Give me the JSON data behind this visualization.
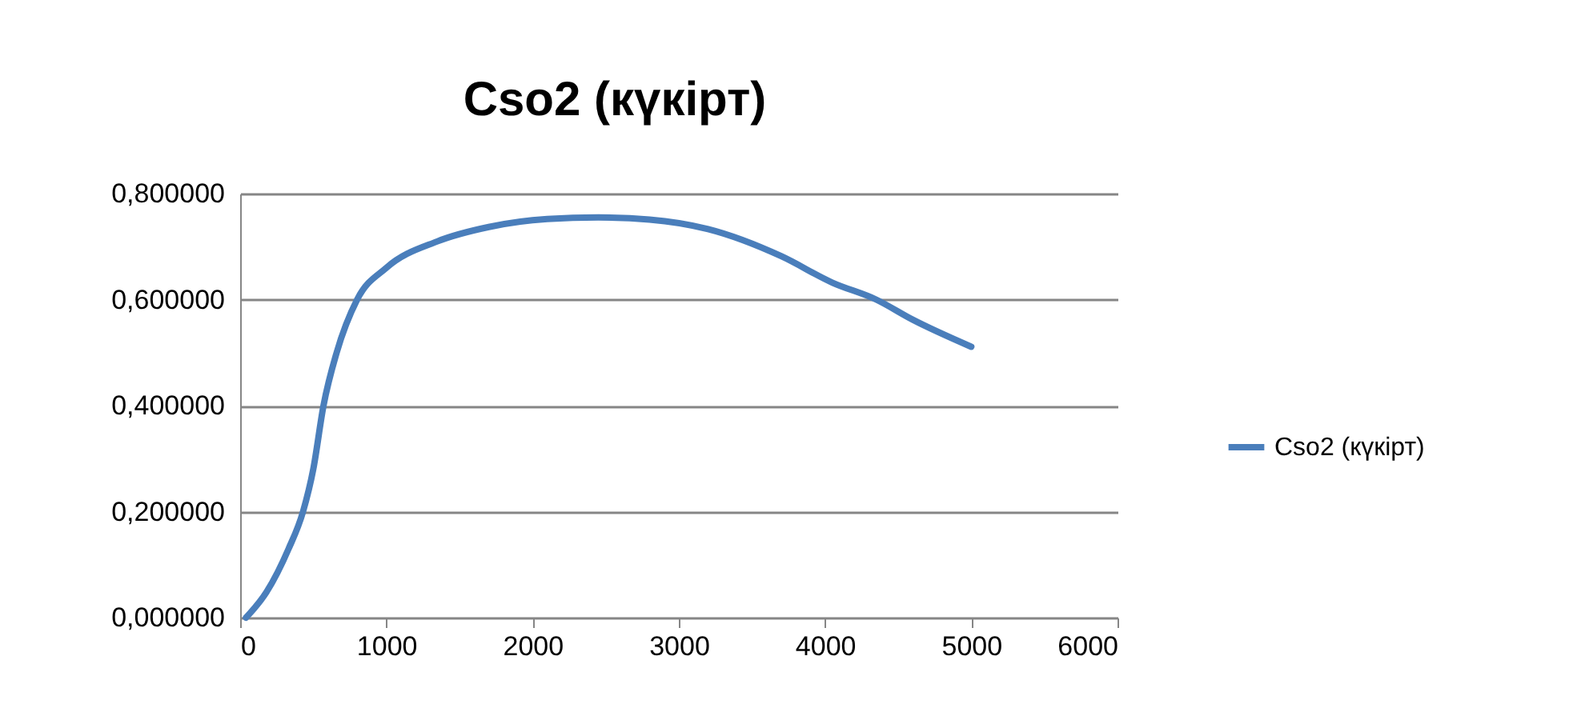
{
  "chart_data": {
    "type": "line",
    "title": "Cso2 (күкірт)",
    "x": [
      40,
      180,
      330,
      430,
      500,
      570,
      660,
      800,
      1000,
      1350,
      1700,
      2100,
      2450,
      2800,
      3200,
      3700,
      4050,
      4350,
      4600,
      5000
    ],
    "series": [
      {
        "name": "Cso2 (күкірт)",
        "color": "#4a7ebb",
        "values": [
          0.0,
          0.048,
          0.129,
          0.2,
          0.28,
          0.4,
          0.5,
          0.6,
          0.66,
          0.71,
          0.737,
          0.752,
          0.755,
          0.751,
          0.733,
          0.682,
          0.632,
          0.6,
          0.562,
          0.511
        ]
      }
    ],
    "xlim": [
      0,
      6000
    ],
    "xticks": [
      0,
      1000,
      2000,
      3000,
      4000,
      5000,
      6000
    ],
    "ylim": [
      0,
      0.8
    ],
    "yticks": [
      {
        "value": 0,
        "label": "0,000000"
      },
      {
        "value": 0.2,
        "label": "0,200000"
      },
      {
        "value": 0.4,
        "label": "0,400000"
      },
      {
        "value": 0.6,
        "label": "0,600000"
      },
      {
        "value": 0.8,
        "label": "0,800000"
      }
    ],
    "grid": "y",
    "legend": "right",
    "marker": "none",
    "line_style": "solid"
  }
}
